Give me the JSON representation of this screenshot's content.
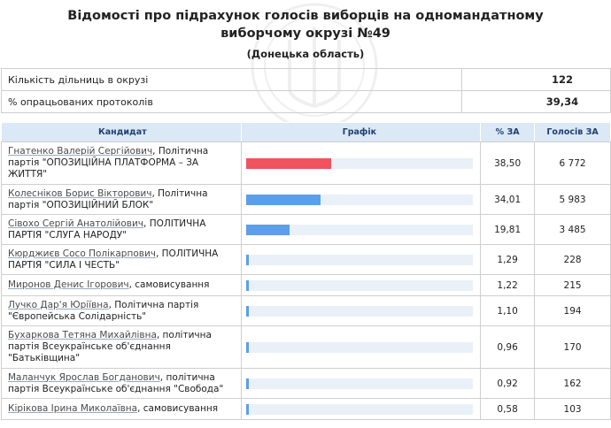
{
  "header": {
    "title": "Відомості про підрахунок голосів виборців на одномандатному виборчому окрузі №49",
    "subtitle": "(Донецька область)"
  },
  "summary": [
    {
      "label": "Кількість дільниць в окрузі",
      "value": "122"
    },
    {
      "label": "% опрацьованих протоколів",
      "value": "39,34"
    }
  ],
  "columns": {
    "candidate": "Кандидат",
    "graph": "Графік",
    "percent": "% ЗА",
    "votes": "Голосів ЗА"
  },
  "colors": {
    "leader_bar": "#f0525f",
    "bar": "#5d9ee8",
    "bar_track": "#eaf0f7",
    "header_bg": "#dbe8f5",
    "header_text": "#1f3f73"
  },
  "candidates": [
    {
      "name": "Гнатенко Валерій Сергійович",
      "party": ", Політична партія \"ОПОЗИЦІЙНА ПЛАТФОРМА – ЗА ЖИТТЯ\"",
      "percent": "38,50",
      "share": 38.5,
      "votes": "6 772",
      "leader": true
    },
    {
      "name": "Колесніков Борис Вікторович",
      "party": ", Політична партія \"ОПОЗИЦІЙНИЙ БЛОК\"",
      "percent": "34,01",
      "share": 34.01,
      "votes": "5 983"
    },
    {
      "name": "Сівохо Сергій Анатолійович",
      "party": ", ПОЛІТИЧНА ПАРТІЯ \"СЛУГА НАРОДУ\"",
      "percent": "19,81",
      "share": 19.81,
      "votes": "3 485"
    },
    {
      "name": "Кюрджиєв Сосо Полікарпович",
      "party": ", ПОЛІТИЧНА ПАРТІЯ \"СИЛА І ЧЕСТЬ\"",
      "percent": "1,29",
      "share": 1.29,
      "votes": "228"
    },
    {
      "name": "Миронов Денис Ігорович",
      "party": ", самовисування",
      "percent": "1,22",
      "share": 1.22,
      "votes": "215"
    },
    {
      "name": "Лучко Дар'я Юріївна",
      "party": ", Політична партія \"Європейська Солідарність\"",
      "percent": "1,10",
      "share": 1.1,
      "votes": "194"
    },
    {
      "name": "Бухаркова Тетяна Михайлівна",
      "party": ", політична партія Всеукраїнське об'єднання \"Батьківщина\"",
      "percent": "0,96",
      "share": 0.96,
      "votes": "170"
    },
    {
      "name": "Маланчук Ярослав Богданович",
      "party": ", політична партія Всеукраїнське об'єднання \"Свобода\"",
      "percent": "0,92",
      "share": 0.92,
      "votes": "162"
    },
    {
      "name": "Кірікова Ірина Миколаївна",
      "party": ", самовисування",
      "percent": "0,58",
      "share": 0.58,
      "votes": "103"
    }
  ]
}
